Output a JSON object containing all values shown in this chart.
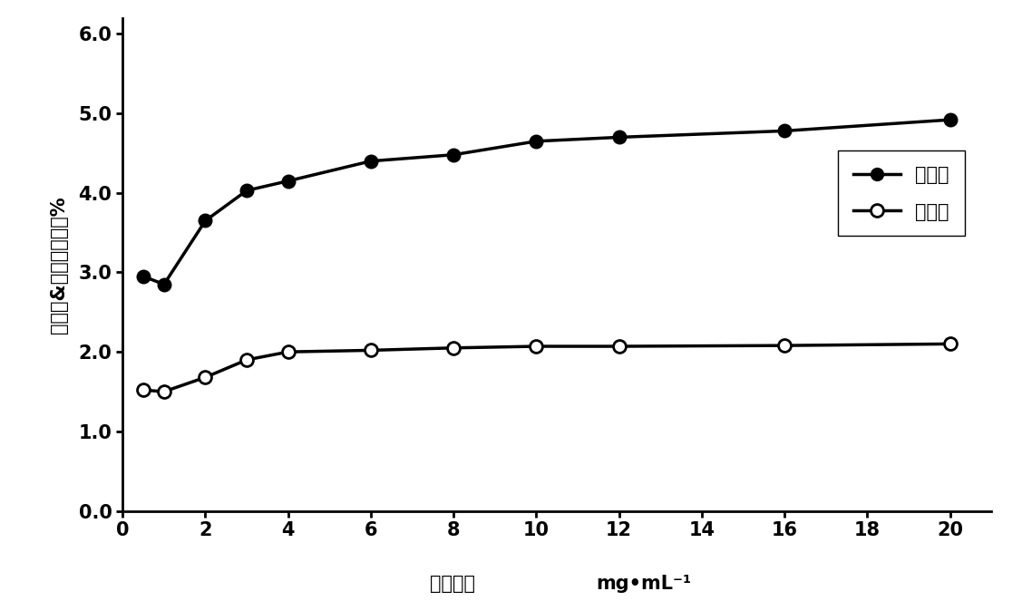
{
  "poly_x": [
    0.5,
    1.0,
    2.0,
    3.0,
    4.0,
    6.0,
    8.0,
    10.0,
    12.0,
    16.0,
    20.0
  ],
  "poly_y": [
    2.95,
    2.85,
    3.65,
    4.03,
    4.15,
    4.4,
    4.48,
    4.65,
    4.7,
    4.78,
    4.92
  ],
  "dimer_x": [
    0.5,
    1.0,
    2.0,
    3.0,
    4.0,
    6.0,
    8.0,
    10.0,
    12.0,
    16.0,
    20.0
  ],
  "dimer_y": [
    1.52,
    1.5,
    1.68,
    1.9,
    2.0,
    2.02,
    2.05,
    2.07,
    2.07,
    2.08,
    2.1
  ],
  "dimer_err": [
    0.0,
    0.0,
    0.07,
    0.06,
    0.0,
    0.0,
    0.0,
    0.0,
    0.0,
    0.0,
    0.0
  ],
  "ylabel": "多聚体&二聚体峰面积%",
  "xlabel_part1": "蛋白浓度",
  "xlabel_part2": "mg•mL⁻¹",
  "legend_poly": "多聚体",
  "legend_dimer": "二聚体",
  "xlim": [
    0,
    21
  ],
  "ylim": [
    0.0,
    6.2
  ],
  "xticks": [
    0,
    2,
    4,
    6,
    8,
    10,
    12,
    14,
    16,
    18,
    20
  ],
  "yticks": [
    0.0,
    1.0,
    2.0,
    3.0,
    4.0,
    5.0,
    6.0
  ],
  "line_color": "#000000",
  "background_color": "#ffffff"
}
